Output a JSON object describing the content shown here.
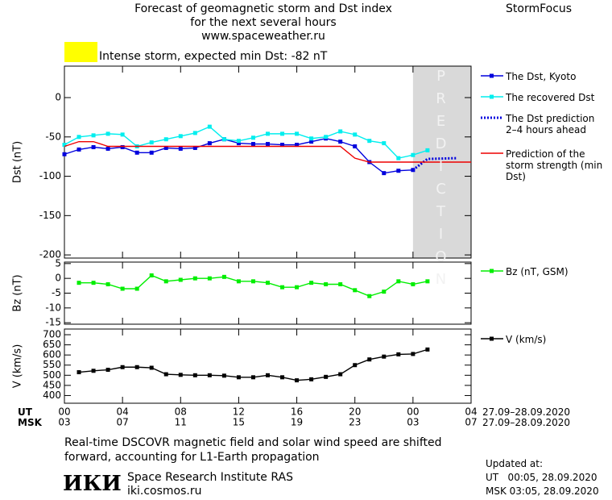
{
  "header": {
    "title_lines": [
      "Forecast of geomagnetic storm and Dst index",
      "for the next several hours",
      "www.spaceweather.ru"
    ],
    "brand": "StormFocus",
    "alert": "Intense storm, expected min Dst: -82 nT",
    "alert_color": "#ffff00",
    "prediction_label": "PREDICTION"
  },
  "chart_data": [
    {
      "type": "line",
      "ylabel": "Dst (nT)",
      "xlim": [
        0,
        28
      ],
      "xticks": [
        0,
        4,
        8,
        12,
        16,
        20,
        24,
        28
      ],
      "ylim": [
        -204,
        40
      ],
      "yticks": [
        0,
        -50,
        -100,
        -150,
        -200
      ],
      "prediction_span": [
        24,
        28
      ],
      "series": [
        {
          "name": "The Dst, Kyoto",
          "color": "#0000dd",
          "marker": "square",
          "x": [
            0,
            1,
            2,
            3,
            4,
            5,
            6,
            7,
            8,
            9,
            10,
            11,
            12,
            13,
            14,
            15,
            16,
            17,
            18,
            19,
            20,
            21,
            22,
            23,
            24
          ],
          "values": [
            -72,
            -66,
            -63,
            -65,
            -63,
            -70,
            -70,
            -64,
            -65,
            -64,
            -58,
            -53,
            -58,
            -59,
            -59,
            -60,
            -60,
            -56,
            -52,
            -56,
            -62,
            -82,
            -96,
            -93,
            -92
          ]
        },
        {
          "name": "The recovered Dst",
          "color": "#00eeee",
          "marker": "square",
          "x": [
            0,
            1,
            2,
            3,
            4,
            5,
            6,
            7,
            8,
            9,
            10,
            11,
            12,
            13,
            14,
            15,
            16,
            17,
            18,
            19,
            20,
            21,
            22,
            23,
            24,
            25
          ],
          "values": [
            -60,
            -50,
            -48,
            -46,
            -47,
            -62,
            -57,
            -53,
            -49,
            -45,
            -37,
            -53,
            -55,
            -51,
            -46,
            -46,
            -46,
            -52,
            -50,
            -43,
            -47,
            -55,
            -58,
            -77,
            -73,
            -67
          ]
        },
        {
          "name": "The Dst prediction 2–4 hours ahead",
          "color": "#0000dd",
          "dash": "dotted",
          "x": [
            24,
            25,
            27
          ],
          "values": [
            -92,
            -78,
            -77
          ]
        },
        {
          "name": "Prediction of the storm strength (min Dst)",
          "color": "#ee0000",
          "x": [
            0,
            1,
            2,
            3,
            19,
            20,
            21,
            28
          ],
          "values": [
            -62,
            -56,
            -56,
            -62,
            -62,
            -77,
            -82,
            -82
          ]
        }
      ]
    },
    {
      "type": "line",
      "ylabel": "Bz (nT)",
      "xlim": [
        0,
        28
      ],
      "xticks": [
        0,
        4,
        8,
        12,
        16,
        20,
        24,
        28
      ],
      "ylim": [
        -15.5,
        5.5
      ],
      "yticks": [
        5,
        0,
        -5,
        -10,
        -15
      ],
      "series": [
        {
          "name": "Bz (nT, GSM)",
          "color": "#00ee00",
          "marker": "square",
          "x": [
            1,
            2,
            3,
            4,
            5,
            6,
            7,
            8,
            9,
            10,
            11,
            12,
            13,
            14,
            15,
            16,
            17,
            18,
            19,
            20,
            21,
            22,
            23,
            24,
            25
          ],
          "values": [
            -1.5,
            -1.5,
            -2,
            -3.5,
            -3.5,
            1,
            -1,
            -0.5,
            0,
            0,
            0.5,
            -1,
            -1,
            -1.5,
            -3,
            -3,
            -1.5,
            -2,
            -2,
            -4,
            -6,
            -4.5,
            -1,
            -2,
            -1
          ]
        }
      ]
    },
    {
      "type": "line",
      "ylabel": "V (km/s)",
      "xlim": [
        0,
        28
      ],
      "xticks": [
        0,
        4,
        8,
        12,
        16,
        20,
        24,
        28
      ],
      "ylim": [
        362,
        728
      ],
      "yticks": [
        400,
        450,
        500,
        550,
        600,
        650,
        700
      ],
      "series": [
        {
          "name": "V (km/s)",
          "color": "#000000",
          "marker": "square",
          "x": [
            1,
            2,
            3,
            4,
            5,
            6,
            7,
            8,
            9,
            10,
            11,
            12,
            13,
            14,
            15,
            16,
            17,
            18,
            19,
            20,
            21,
            22,
            23,
            24,
            25
          ],
          "values": [
            515,
            522,
            527,
            540,
            540,
            537,
            505,
            502,
            500,
            500,
            498,
            490,
            490,
            500,
            490,
            475,
            480,
            492,
            505,
            550,
            578,
            592,
            603,
            605,
            627
          ]
        }
      ]
    }
  ],
  "time_axis": {
    "ut_label": "UT",
    "ut_ticks": [
      "00",
      "04",
      "08",
      "12",
      "16",
      "20",
      "00",
      "04"
    ],
    "ut_range": "27.09–28.09.2020",
    "msk_label": "MSK",
    "msk_ticks": [
      "03",
      "07",
      "11",
      "15",
      "19",
      "23",
      "03",
      "07"
    ],
    "msk_range": "27.09–28.09.2020"
  },
  "footer": {
    "note_lines": [
      "Real-time DSCOVR magnetic field and solar wind speed are shifted",
      "forward, accounting for L1-Earth propagation"
    ],
    "logo": "ИКИ",
    "institute": "Space Research Institute RAS",
    "site": "iki.cosmos.ru",
    "updated_label": "Updated at:",
    "updated_ut": "UT   00:05, 28.09.2020",
    "updated_msk": "MSK 03:05, 28.09.2020"
  }
}
